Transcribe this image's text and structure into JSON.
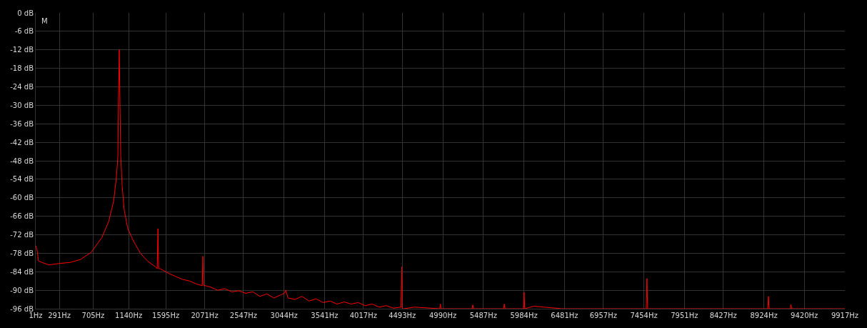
{
  "chart_data": {
    "type": "line",
    "annotations": [
      "M"
    ],
    "x": [
      1,
      18,
      35,
      78,
      164,
      293,
      423,
      551,
      681,
      810,
      896,
      957,
      991,
      1008,
      1017,
      1025,
      1034,
      1043,
      1060,
      1086,
      1129,
      1198,
      1284,
      1370,
      1473,
      1490,
      1499,
      1507,
      1525,
      1628,
      1714,
      1800,
      1886,
      1973,
      2042,
      2050,
      2059,
      2076,
      2145,
      2231,
      2317,
      2403,
      2489,
      2575,
      2661,
      2747,
      2834,
      2920,
      3006,
      3049,
      3066,
      3092,
      3178,
      3264,
      3350,
      3436,
      3522,
      3609,
      3695,
      3781,
      3867,
      3953,
      4039,
      4125,
      4211,
      4297,
      4384,
      4478,
      4486,
      4495,
      4513,
      4642,
      4952,
      4961,
      4970,
      5348,
      5357,
      5366,
      5735,
      5744,
      5753,
      5977,
      5986,
      5994,
      6105,
      6450,
      7483,
      7492,
      7500,
      8972,
      8981,
      8989,
      9248,
      9257,
      9265,
      9917
    ],
    "series": [
      {
        "color": "#ff0000",
        "values": [
          -75.5,
          -77,
          -80.5,
          -81,
          -81.8,
          -81.3,
          -81,
          -80,
          -77.7,
          -73,
          -67.7,
          -61,
          -53,
          -46.5,
          -26,
          -12,
          -30,
          -46,
          -56,
          -64,
          -70,
          -74,
          -78,
          -80.5,
          -82.5,
          -83,
          -70,
          -83,
          -83,
          -84.5,
          -85.5,
          -86.5,
          -87,
          -88,
          -88.5,
          -79,
          -88.5,
          -88.5,
          -89,
          -90,
          -89.5,
          -90.5,
          -90.2,
          -91,
          -90.5,
          -92,
          -91.2,
          -92.5,
          -91.5,
          -91,
          -90,
          -92.5,
          -93,
          -92,
          -93.5,
          -92.8,
          -94,
          -93.5,
          -94.5,
          -93.8,
          -94.5,
          -94,
          -95,
          -94.5,
          -95.5,
          -95,
          -95.8,
          -95.5,
          -82.4,
          -96,
          -96,
          -95.5,
          -96,
          -94.5,
          -96,
          -96,
          -94.8,
          -96,
          -96,
          -94.5,
          -96,
          -96,
          -90.7,
          -96,
          -95.2,
          -96,
          -96,
          -86.2,
          -96,
          -96,
          -92,
          -96,
          -96,
          -94.7,
          -96,
          -96
        ]
      }
    ],
    "xlim": [
      1,
      9917
    ],
    "xticks": [
      {
        "value": 1,
        "label": "1Hz"
      },
      {
        "value": 291,
        "label": "291Hz"
      },
      {
        "value": 705,
        "label": "705Hz"
      },
      {
        "value": 1140,
        "label": "1140Hz"
      },
      {
        "value": 1595,
        "label": "1595Hz"
      },
      {
        "value": 2071,
        "label": "2071Hz"
      },
      {
        "value": 2547,
        "label": "2547Hz"
      },
      {
        "value": 3044,
        "label": "3044Hz"
      },
      {
        "value": 3541,
        "label": "3541Hz"
      },
      {
        "value": 4017,
        "label": "4017Hz"
      },
      {
        "value": 4493,
        "label": "4493Hz"
      },
      {
        "value": 4990,
        "label": "4990Hz"
      },
      {
        "value": 5487,
        "label": "5487Hz"
      },
      {
        "value": 5984,
        "label": "5984Hz"
      },
      {
        "value": 6481,
        "label": "6481Hz"
      },
      {
        "value": 6957,
        "label": "6957Hz"
      },
      {
        "value": 7454,
        "label": "7454Hz"
      },
      {
        "value": 7951,
        "label": "7951Hz"
      },
      {
        "value": 8427,
        "label": "8427Hz"
      },
      {
        "value": 8924,
        "label": "8924Hz"
      },
      {
        "value": 9420,
        "label": "9420Hz"
      },
      {
        "value": 9917,
        "label": "9917Hz"
      }
    ],
    "ylim": [
      -96,
      0
    ],
    "yticks": [
      {
        "value": 0,
        "label": "0 dB"
      },
      {
        "value": -6,
        "label": "-6 dB"
      },
      {
        "value": -12,
        "label": "-12 dB"
      },
      {
        "value": -18,
        "label": "-18 dB"
      },
      {
        "value": -24,
        "label": "-24 dB"
      },
      {
        "value": -30,
        "label": "-30 dB"
      },
      {
        "value": -36,
        "label": "-36 dB"
      },
      {
        "value": -42,
        "label": "-42 dB"
      },
      {
        "value": -48,
        "label": "-48 dB"
      },
      {
        "value": -54,
        "label": "-54 dB"
      },
      {
        "value": -60,
        "label": "-60 dB"
      },
      {
        "value": -66,
        "label": "-66 dB"
      },
      {
        "value": -72,
        "label": "-72 dB"
      },
      {
        "value": -78,
        "label": "-78 dB"
      },
      {
        "value": -84,
        "label": "-84 dB"
      },
      {
        "value": -90,
        "label": "-90 dB"
      },
      {
        "value": -96,
        "label": "-96 dB"
      }
    ],
    "grid": true,
    "marker": "none",
    "line_style": "solid"
  }
}
